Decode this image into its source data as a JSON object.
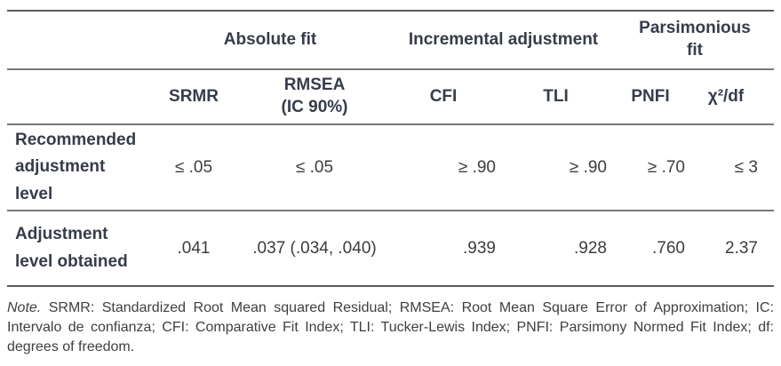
{
  "table": {
    "group_headers": [
      {
        "label": "Absolute fit",
        "span": 2
      },
      {
        "label": "Incremental adjustment",
        "span": 2
      },
      {
        "label": "Parsimonious\nfit",
        "span": 2
      }
    ],
    "columns": [
      "SRMR",
      "RMSEA\n(IC 90%)",
      "CFI",
      "TLI",
      "PNFI",
      "χ²/df"
    ],
    "rows": [
      {
        "label": "Recommended\nadjustment\nlevel",
        "values": [
          "≤ .05",
          "≤ .05",
          "≥ .90",
          "≥ .90",
          "≥ .70",
          "≤ 3"
        ]
      },
      {
        "label": "Adjustment\nlevel obtained",
        "values": [
          ".041",
          ".037 (.034, .040)",
          ".939",
          ".928",
          ".760",
          "2.37"
        ]
      }
    ]
  },
  "note": {
    "label": "Note.",
    "text": " SRMR: Standardized Root Mean squared Residual; RMSEA: Root Mean Square Error of Approximation; IC: Intervalo de confianza; CFI: Comparative Fit Index; TLI: Tucker-Lewis Index; PNFI: Parsimony Normed Fit Index; df: degrees of freedom."
  },
  "colors": {
    "header_text": "#363c49",
    "body_text": "#3d3d3d",
    "note_text": "#3f3f3f",
    "outer_rule": "#595a5c",
    "inner_rule": "#77787a"
  }
}
